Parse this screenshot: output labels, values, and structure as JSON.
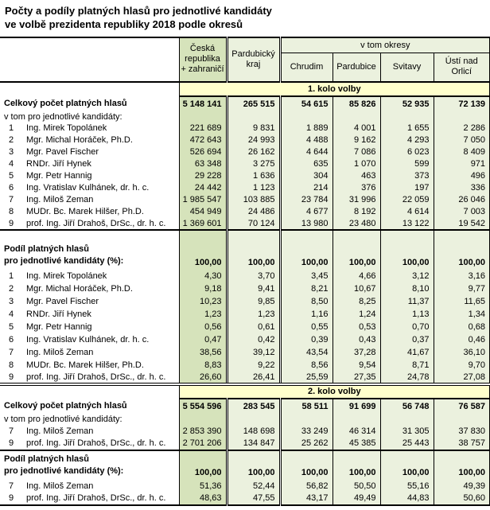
{
  "title": {
    "line1": "Počty a podíly platných hlasů pro jednotlivé kandidáty",
    "line2": "ve volbě prezidenta republiky 2018 podle okresů"
  },
  "colors": {
    "region_column_green": "#d6e3bb",
    "data_cell_green": "#ebf1de",
    "section_band_yellow": "#ffffcc",
    "border": "#000000"
  },
  "header": {
    "region": "Česká\nrepublika\n+ zahraničí",
    "kraj": "Pardubický\nkraj",
    "group": "v tom okresy",
    "districts": [
      "Chrudim",
      "Pardubice",
      "Svitavy",
      "Ústí nad\nOrlicí"
    ]
  },
  "sections": [
    {
      "band": "1. kolo volby",
      "counts": {
        "label": "Celkový počet platných hlasů",
        "sublabel": "v tom pro jednotlivé kandidáty:",
        "total": [
          "5 148 141",
          "265 515",
          "54 615",
          "85 826",
          "52 935",
          "72 139"
        ],
        "rows": [
          {
            "num": "1",
            "name": "Ing. Mirek Topolánek",
            "values": [
              "221 689",
              "9 831",
              "1 889",
              "4 001",
              "1 655",
              "2 286"
            ]
          },
          {
            "num": "2",
            "name": "Mgr. Michal Horáček, Ph.D.",
            "values": [
              "472 643",
              "24 993",
              "4 488",
              "9 162",
              "4 293",
              "7 050"
            ]
          },
          {
            "num": "3",
            "name": "Mgr. Pavel Fischer",
            "values": [
              "526 694",
              "26 162",
              "4 644",
              "7 086",
              "6 023",
              "8 409"
            ]
          },
          {
            "num": "4",
            "name": "RNDr. Jiří Hynek",
            "values": [
              "63 348",
              "3 275",
              "635",
              "1 070",
              "599",
              "971"
            ]
          },
          {
            "num": "5",
            "name": "Mgr. Petr Hannig",
            "values": [
              "29 228",
              "1 636",
              "304",
              "463",
              "373",
              "496"
            ]
          },
          {
            "num": "6",
            "name": "Ing. Vratislav Kulhánek, dr. h. c.",
            "values": [
              "24 442",
              "1 123",
              "214",
              "376",
              "197",
              "336"
            ]
          },
          {
            "num": "7",
            "name": "Ing. Miloš Zeman",
            "values": [
              "1 985 547",
              "103 885",
              "23 784",
              "31 996",
              "22 059",
              "26 046"
            ]
          },
          {
            "num": "8",
            "name": "MUDr. Bc. Marek Hilšer, Ph.D.",
            "values": [
              "454 949",
              "24 486",
              "4 677",
              "8 192",
              "4 614",
              "7 003"
            ]
          },
          {
            "num": "9",
            "name": "prof. Ing. Jiří Drahoš, DrSc., dr. h. c.",
            "values": [
              "1 369 601",
              "70 124",
              "13 980",
              "23 480",
              "13 122",
              "19 542"
            ]
          }
        ]
      },
      "shares": {
        "label": "Podíl platných hlasů\npro jednotlivé kandidáty (%):",
        "total": [
          "100,00",
          "100,00",
          "100,00",
          "100,00",
          "100,00",
          "100,00"
        ],
        "rows": [
          {
            "num": "1",
            "name": "Ing. Mirek Topolánek",
            "values": [
              "4,30",
              "3,70",
              "3,45",
              "4,66",
              "3,12",
              "3,16"
            ]
          },
          {
            "num": "2",
            "name": "Mgr. Michal Horáček, Ph.D.",
            "values": [
              "9,18",
              "9,41",
              "8,21",
              "10,67",
              "8,10",
              "9,77"
            ]
          },
          {
            "num": "3",
            "name": "Mgr. Pavel Fischer",
            "values": [
              "10,23",
              "9,85",
              "8,50",
              "8,25",
              "11,37",
              "11,65"
            ]
          },
          {
            "num": "4",
            "name": "RNDr. Jiří Hynek",
            "values": [
              "1,23",
              "1,23",
              "1,16",
              "1,24",
              "1,13",
              "1,34"
            ]
          },
          {
            "num": "5",
            "name": "Mgr. Petr Hannig",
            "values": [
              "0,56",
              "0,61",
              "0,55",
              "0,53",
              "0,70",
              "0,68"
            ]
          },
          {
            "num": "6",
            "name": "Ing. Vratislav Kulhánek, dr. h. c.",
            "values": [
              "0,47",
              "0,42",
              "0,39",
              "0,43",
              "0,37",
              "0,46"
            ]
          },
          {
            "num": "7",
            "name": "Ing. Miloš Zeman",
            "values": [
              "38,56",
              "39,12",
              "43,54",
              "37,28",
              "41,67",
              "36,10"
            ]
          },
          {
            "num": "8",
            "name": "MUDr. Bc. Marek Hilšer, Ph.D.",
            "values": [
              "8,83",
              "9,22",
              "8,56",
              "9,54",
              "8,71",
              "9,70"
            ]
          },
          {
            "num": "9",
            "name": "prof. Ing. Jiří Drahoš, DrSc., dr. h. c.",
            "values": [
              "26,60",
              "26,41",
              "25,59",
              "27,35",
              "24,78",
              "27,08"
            ]
          }
        ]
      }
    },
    {
      "band": "2. kolo volby",
      "counts": {
        "label": "Celkový počet platných hlasů",
        "sublabel": "v tom pro jednotlivé kandidáty:",
        "total": [
          "5 554 596",
          "283 545",
          "58 511",
          "91 699",
          "56 748",
          "76 587"
        ],
        "rows": [
          {
            "num": "7",
            "name": "Ing. Miloš Zeman",
            "values": [
              "2 853 390",
              "148 698",
              "33 249",
              "46 314",
              "31 305",
              "37 830"
            ]
          },
          {
            "num": "9",
            "name": "prof. Ing. Jiří Drahoš, DrSc., dr. h. c.",
            "values": [
              "2 701 206",
              "134 847",
              "25 262",
              "45 385",
              "25 443",
              "38 757"
            ]
          }
        ]
      },
      "shares": {
        "label": "Podíl platných hlasů\npro jednotlivé kandidáty (%):",
        "total": [
          "100,00",
          "100,00",
          "100,00",
          "100,00",
          "100,00",
          "100,00"
        ],
        "rows": [
          {
            "num": "7",
            "name": "Ing. Miloš Zeman",
            "values": [
              "51,36",
              "52,44",
              "56,82",
              "50,50",
              "55,16",
              "49,39"
            ]
          },
          {
            "num": "9",
            "name": "prof. Ing. Jiří Drahoš, DrSc., dr. h. c.",
            "values": [
              "48,63",
              "47,55",
              "43,17",
              "49,49",
              "44,83",
              "50,60"
            ]
          }
        ]
      }
    }
  ]
}
